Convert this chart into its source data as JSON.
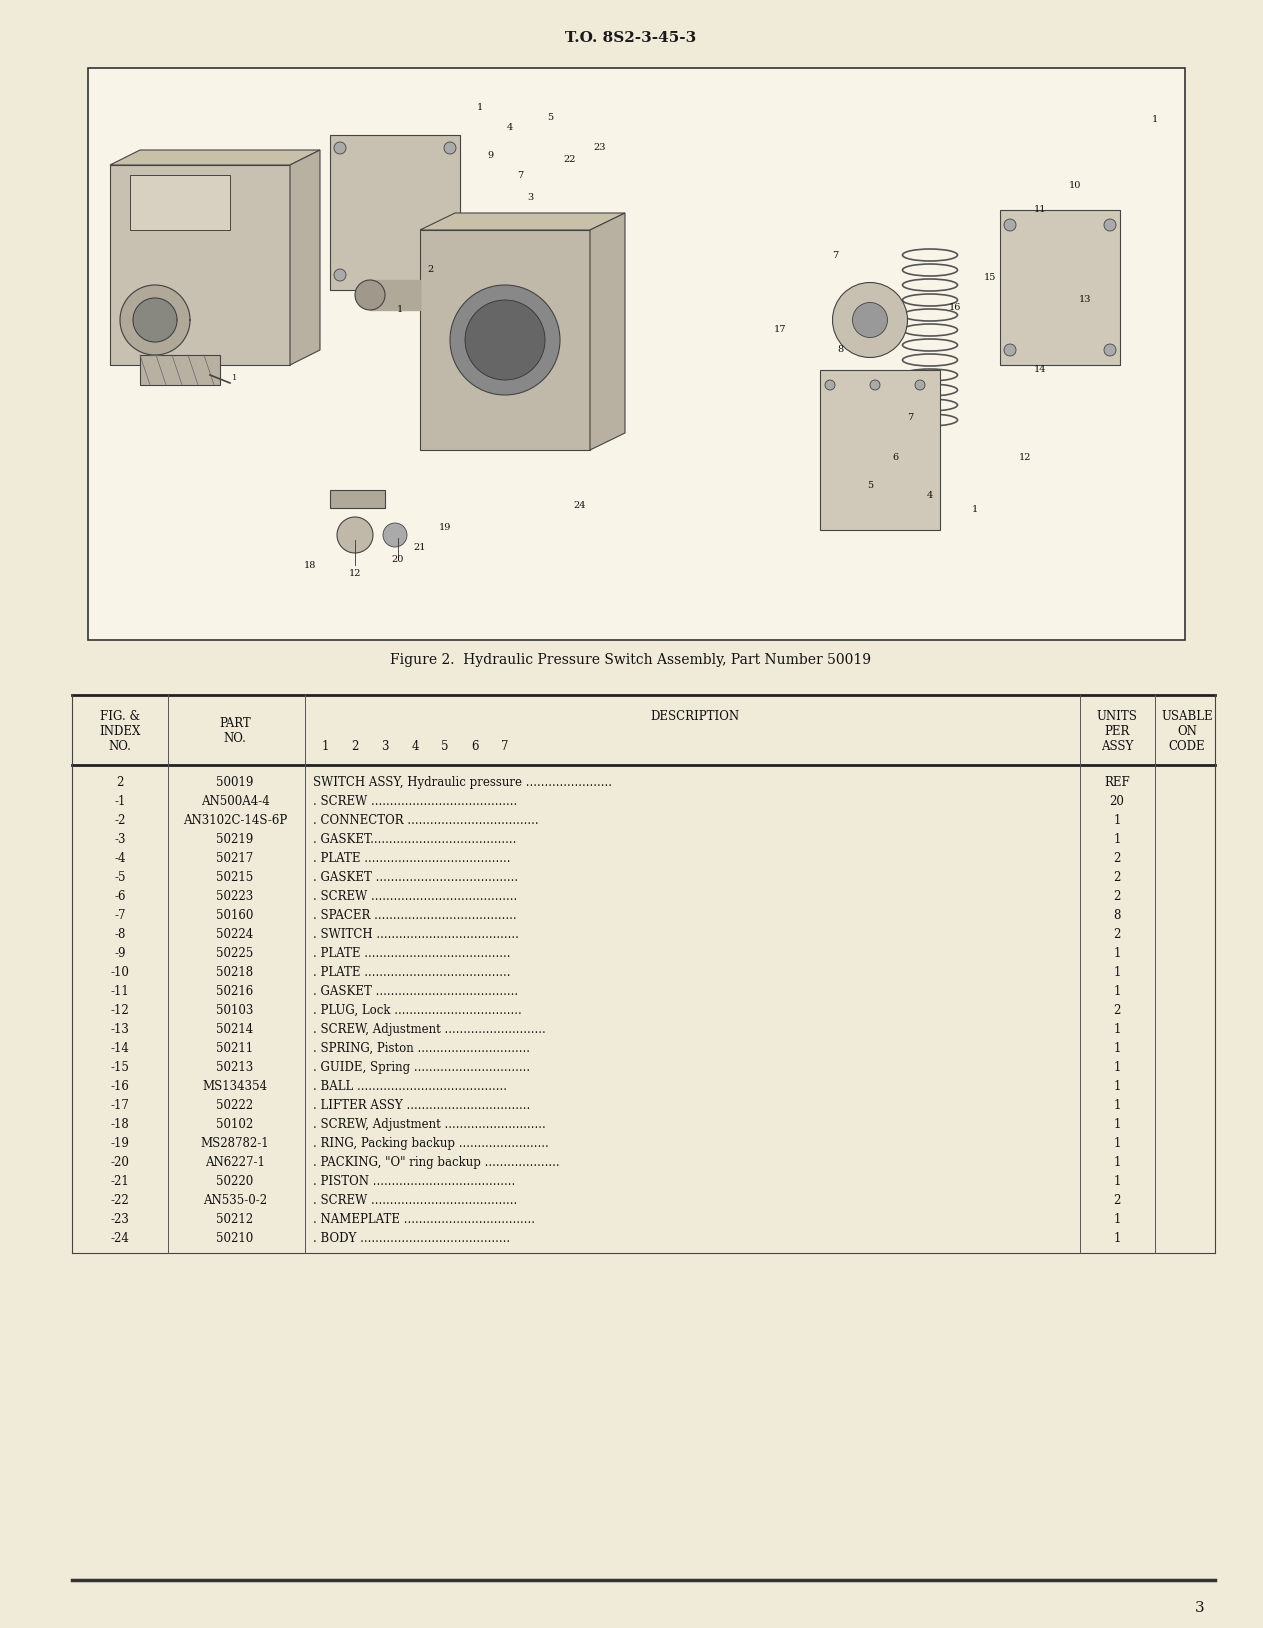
{
  "page_bg": "#f0ead8",
  "header_text": "T.O. 8S2-3-45-3",
  "figure_caption": "Figure 2.  Hydraulic Pressure Switch Assembly, Part Number 50019",
  "page_number": "3",
  "rows": [
    [
      "2",
      "50019",
      "SWITCH ASSY, Hydraulic pressure .......................",
      "REF",
      ""
    ],
    [
      "-1",
      "AN500A4-4",
      ". SCREW .......................................",
      "20",
      ""
    ],
    [
      "-2",
      "AN3102C-14S-6P",
      ". CONNECTOR ...................................",
      "1",
      ""
    ],
    [
      "-3",
      "50219",
      ". GASKET.......................................",
      "1",
      ""
    ],
    [
      "-4",
      "50217",
      ". PLATE .......................................",
      "2",
      ""
    ],
    [
      "-5",
      "50215",
      ". GASKET ......................................",
      "2",
      ""
    ],
    [
      "-6",
      "50223",
      ". SCREW .......................................",
      "2",
      ""
    ],
    [
      "-7",
      "50160",
      ". SPACER ......................................",
      "8",
      ""
    ],
    [
      "-8",
      "50224",
      ". SWITCH ......................................",
      "2",
      ""
    ],
    [
      "-9",
      "50225",
      ". PLATE .......................................",
      "1",
      ""
    ],
    [
      "-10",
      "50218",
      ". PLATE .......................................",
      "1",
      ""
    ],
    [
      "-11",
      "50216",
      ". GASKET ......................................",
      "1",
      ""
    ],
    [
      "-12",
      "50103",
      ". PLUG, Lock ..................................",
      "2",
      ""
    ],
    [
      "-13",
      "50214",
      ". SCREW, Adjustment ...........................",
      "1",
      ""
    ],
    [
      "-14",
      "50211",
      ". SPRING, Piston ..............................",
      "1",
      ""
    ],
    [
      "-15",
      "50213",
      ". GUIDE, Spring ...............................",
      "1",
      ""
    ],
    [
      "-16",
      "MS134354",
      ". BALL ........................................",
      "1",
      ""
    ],
    [
      "-17",
      "50222",
      ". LIFTER ASSY .................................",
      "1",
      ""
    ],
    [
      "-18",
      "50102",
      ". SCREW, Adjustment ...........................",
      "1",
      ""
    ],
    [
      "-19",
      "MS28782-1",
      ". RING, Packing backup ........................",
      "1",
      ""
    ],
    [
      "-20",
      "AN6227-1",
      ". PACKING, \"O\" ring backup ....................",
      "1",
      ""
    ],
    [
      "-21",
      "50220",
      ". PISTON ......................................",
      "1",
      ""
    ],
    [
      "-22",
      "AN535-0-2",
      ". SCREW .......................................",
      "2",
      ""
    ],
    [
      "-23",
      "50212",
      ". NAMEPLATE ...................................",
      "1",
      ""
    ],
    [
      "-24",
      "50210",
      ". BODY ........................................",
      "1",
      ""
    ]
  ],
  "desc_col_data": [
    "SWITCH ASSY, Hydraulic pressure .......................",
    ". SCREW .......................................",
    ". CONNECTOR ...................................",
    ". GASKET.......................................",
    ". PLATE .......................................",
    ". GASKET ......................................",
    ". SCREW .......................................",
    ". SPACER ......................................",
    ". SWITCH ......................................",
    ". PLATE .......................................",
    ". PLATE .......................................",
    ". GASKET ......................................",
    ". PLUG, Lock ..................................",
    ". SCREW, Adjustment ...........................",
    ". SPRING, Piston ..............................",
    ". GUIDE, Spring ...............................",
    ". BALL ........................................",
    ". LIFTER ASSY .................................",
    ". SCREW, Adjustment ...........................",
    ". RING, Packing backup ........................",
    ". PACKING, \"O\" ring backup ....................",
    ". PISTON ......................................",
    ". SCREW .......................................",
    ". NAMEPLATE ...................................",
    ". BODY ........................................"
  ]
}
